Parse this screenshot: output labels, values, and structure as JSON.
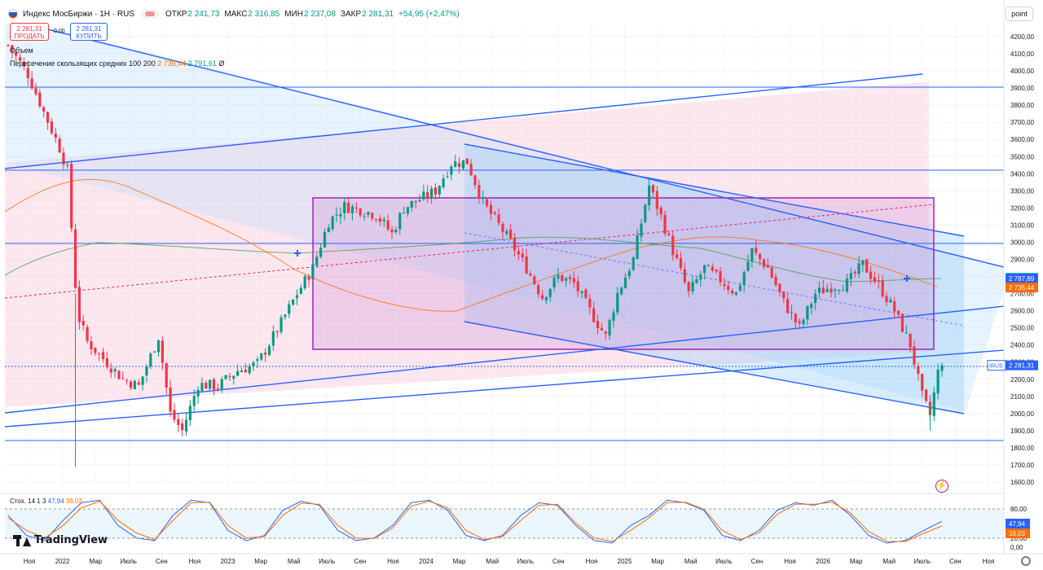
{
  "header": {
    "title": "Индекс МосБиржи · 1Н · RUS",
    "open_label": "ОТКР",
    "open": "2 241,73",
    "high_label": "МАКС",
    "high": "2 316,85",
    "low_label": "МИН",
    "low": "2 237,08",
    "close_label": "ЗАКР",
    "close": "2 281,31",
    "change": "+54,95 (+2,47%)"
  },
  "trade": {
    "sell_price": "2 281,31",
    "sell_label": "ПРОДАТЬ",
    "buy_price": "2 281,31",
    "buy_label": "КУПИТЬ",
    "spread": "0,00"
  },
  "legend": {
    "volume": "Объем",
    "ma_cross_label": "Пересечение скользящих средних 100 200",
    "ma100": "2 735,44",
    "ma200": "2 791,61",
    "ma_extra": "Ø"
  },
  "unit_button": "point",
  "logo": "TradingView",
  "stoch": {
    "label": "Стох. 14 1 3",
    "k": "47,94",
    "d": "39,03"
  },
  "colors": {
    "up": "#089981",
    "down": "#f23645",
    "ma100": "#ff6d00",
    "ma200": "#43a047",
    "line": "#2962ff",
    "rect_border": "#9c27b0",
    "stoch_k": "#2962ff",
    "stoch_d": "#ff6d00"
  },
  "chart_data": [
    {
      "type": "candlestick",
      "title": "Индекс МосБиржи · 1Н · RUS",
      "xlabel": "",
      "ylabel": "",
      "ylim": [
        1540,
        4300
      ],
      "grid": true,
      "price_ticks": [
        "4200,00",
        "4100,00",
        "4000,00",
        "3900,00",
        "3800,00",
        "3700,00",
        "3600,00",
        "3500,00",
        "3400,00",
        "3300,00",
        "3200,00",
        "3100,00",
        "3000,00",
        "2900,00",
        "2800,00",
        "2700,00",
        "2600,00",
        "2500,00",
        "2400,00",
        "2300,00",
        "2200,00",
        "2100,00",
        "2000,00",
        "1900,00",
        "1800,00",
        "1700,00",
        "1600,00"
      ],
      "time_ticks": [
        "Ноя",
        "2022",
        "Мар",
        "Июль",
        "Сен",
        "Ноя",
        "2023",
        "Мар",
        "Май",
        "Июль",
        "Сен",
        "Ноя",
        "2024",
        "Мар",
        "Май",
        "Июль",
        "Сен",
        "Ноя",
        "2025",
        "Мар",
        "Май",
        "Июль",
        "Сен",
        "Ноя",
        "2026",
        "Мар",
        "Май",
        "Июль",
        "Сен",
        "Ноя"
      ],
      "price_series": [
        {
          "t": 0,
          "c": 4150
        },
        {
          "t": 5,
          "c": 3980
        },
        {
          "t": 9,
          "c": 3760
        },
        {
          "t": 13,
          "c": 3550
        },
        {
          "t": 15,
          "c": 3420
        },
        {
          "t": 17,
          "c": 2750
        },
        {
          "t": 18,
          "c": 2550
        },
        {
          "t": 20,
          "c": 2420
        },
        {
          "t": 24,
          "c": 2320
        },
        {
          "t": 29,
          "c": 2200
        },
        {
          "t": 33,
          "c": 2160
        },
        {
          "t": 38,
          "c": 2450
        },
        {
          "t": 41,
          "c": 2000
        },
        {
          "t": 44,
          "c": 1900
        },
        {
          "t": 48,
          "c": 2170
        },
        {
          "t": 53,
          "c": 2160
        },
        {
          "t": 58,
          "c": 2250
        },
        {
          "t": 63,
          "c": 2290
        },
        {
          "t": 69,
          "c": 2530
        },
        {
          "t": 73,
          "c": 2700
        },
        {
          "t": 77,
          "c": 2850
        },
        {
          "t": 81,
          "c": 3120
        },
        {
          "t": 85,
          "c": 3210
        },
        {
          "t": 89,
          "c": 3190
        },
        {
          "t": 93,
          "c": 3160
        },
        {
          "t": 97,
          "c": 3050
        },
        {
          "t": 100,
          "c": 3200
        },
        {
          "t": 104,
          "c": 3250
        },
        {
          "t": 108,
          "c": 3300
        },
        {
          "t": 112,
          "c": 3460
        },
        {
          "t": 116,
          "c": 3470
        },
        {
          "t": 120,
          "c": 3230
        },
        {
          "t": 124,
          "c": 3100
        },
        {
          "t": 127,
          "c": 3000
        },
        {
          "t": 131,
          "c": 2850
        },
        {
          "t": 135,
          "c": 2680
        },
        {
          "t": 139,
          "c": 2800
        },
        {
          "t": 143,
          "c": 2760
        },
        {
          "t": 147,
          "c": 2600
        },
        {
          "t": 151,
          "c": 2450
        },
        {
          "t": 154,
          "c": 2700
        },
        {
          "t": 158,
          "c": 2900
        },
        {
          "t": 162,
          "c": 3330
        },
        {
          "t": 165,
          "c": 3150
        },
        {
          "t": 168,
          "c": 2950
        },
        {
          "t": 172,
          "c": 2700
        },
        {
          "t": 176,
          "c": 2850
        },
        {
          "t": 180,
          "c": 2780
        },
        {
          "t": 184,
          "c": 2700
        },
        {
          "t": 188,
          "c": 2950
        },
        {
          "t": 192,
          "c": 2850
        },
        {
          "t": 196,
          "c": 2650
        },
        {
          "t": 200,
          "c": 2500
        },
        {
          "t": 204,
          "c": 2700
        },
        {
          "t": 208,
          "c": 2740
        },
        {
          "t": 212,
          "c": 2760
        },
        {
          "t": 216,
          "c": 2870
        },
        {
          "t": 220,
          "c": 2750
        },
        {
          "t": 224,
          "c": 2600
        },
        {
          "t": 228,
          "c": 2400
        },
        {
          "t": 231,
          "c": 2100
        },
        {
          "t": 233,
          "c": 1990
        },
        {
          "t": 235,
          "c": 2240
        },
        {
          "t": 236,
          "c": 2281.31
        }
      ],
      "moving_averages": [
        {
          "name": "100",
          "color": "#ff6d00",
          "last": 2735.44
        },
        {
          "name": "200",
          "color": "#43a047",
          "last": 2791.61
        }
      ],
      "price_labels": [
        {
          "value": 2791.61,
          "text": "2 791,61",
          "color": "#089981"
        },
        {
          "value": 2787.89,
          "text": "2 787,89",
          "color": "#2962ff"
        },
        {
          "value": 2735.44,
          "text": "2 735,44",
          "color": "#ff6d00"
        },
        {
          "value": 2281.31,
          "text": "2 281,31",
          "symbol": "IRUS",
          "color": "#2962ff"
        }
      ],
      "horizontal_levels": [
        3890,
        3420,
        2990,
        2280,
        1850
      ]
    },
    {
      "type": "line",
      "title": "Стох. 14 1 3",
      "ylim": [
        0,
        100
      ],
      "levels": [
        80,
        20
      ],
      "price_ticks": [
        "80,00",
        "20,00",
        "0,00"
      ],
      "series": [
        {
          "name": "%K",
          "last": 47.94,
          "values": [
            60,
            20,
            10,
            50,
            85,
            90,
            40,
            15,
            10,
            60,
            90,
            85,
            30,
            10,
            20,
            70,
            88,
            80,
            30,
            10,
            15,
            40,
            85,
            90,
            70,
            20,
            10,
            20,
            60,
            85,
            80,
            40,
            10,
            5,
            40,
            60,
            90,
            85,
            70,
            20,
            10,
            30,
            70,
            85,
            80,
            90,
            60,
            20,
            5,
            10,
            30,
            47.94
          ]
        },
        {
          "name": "%D",
          "last": 39.03,
          "values": [
            55,
            30,
            15,
            40,
            75,
            88,
            50,
            25,
            12,
            50,
            85,
            86,
            40,
            15,
            18,
            60,
            84,
            82,
            40,
            15,
            14,
            35,
            78,
            88,
            75,
            30,
            12,
            18,
            50,
            80,
            82,
            45,
            15,
            8,
            30,
            55,
            85,
            86,
            72,
            30,
            12,
            25,
            62,
            82,
            82,
            86,
            65,
            28,
            8,
            8,
            24,
            39.03
          ]
        }
      ]
    }
  ]
}
